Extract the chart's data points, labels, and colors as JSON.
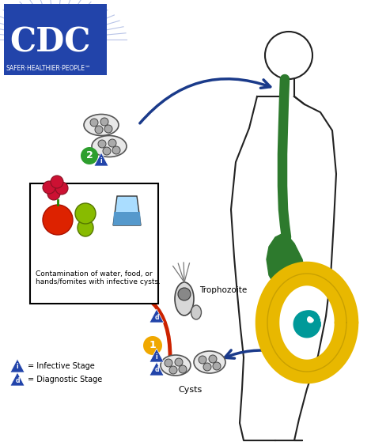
{
  "bg_color": "#ffffff",
  "cdc_box_color": "#2244aa",
  "cdc_text": "CDC",
  "cdc_subtitle": "SAFER·HEALTHIER·PEOPLE™",
  "blue_arrow_color": "#1a3a8a",
  "red_arrow_color": "#cc2200",
  "body_outline_color": "#222222",
  "intestine_green_color": "#2d7a2d",
  "intestine_yellow_color": "#e8b800",
  "intestine_teal_color": "#009999",
  "legend_triangle_color": "#2244aa",
  "step1_circle_color": "#f0a800",
  "step2_circle_color": "#2d9e2d",
  "contamination_box_color": "#000000",
  "text_color": "#000000",
  "contamination_text": "Contamination of water, food, or\nhands/fomites with infective cysts.",
  "trophozoite_label": "Trophozoite",
  "cysts_label": "Cysts",
  "infective_label": "= Infective Stage",
  "diagnostic_label": "= Diagnostic Stage"
}
